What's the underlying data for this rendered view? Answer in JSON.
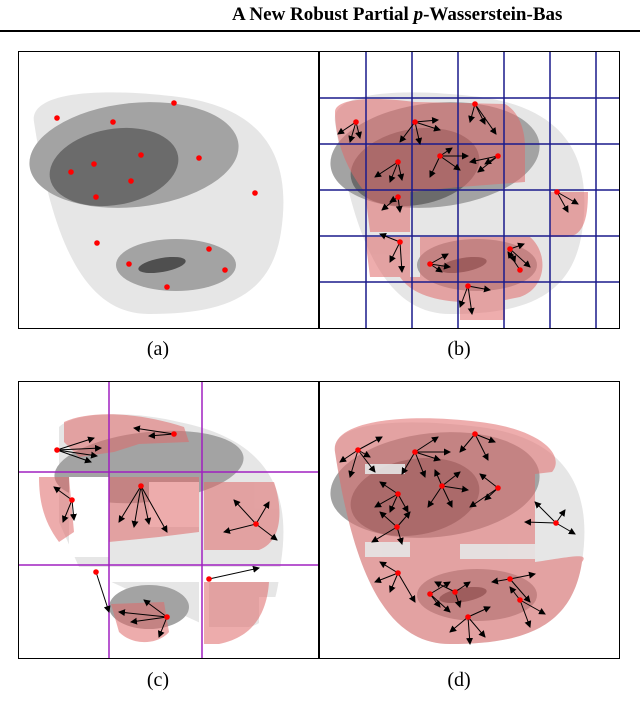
{
  "header": {
    "running_title_prefix": "A New Robust Partial ",
    "running_title_p": "p",
    "running_title_suffix": "-Wasserstein-Bas"
  },
  "panels": [
    {
      "id": "a",
      "caption": "(a)"
    },
    {
      "id": "b",
      "caption": "(b)"
    },
    {
      "id": "c",
      "caption": "(c)"
    },
    {
      "id": "d",
      "caption": "(d)"
    }
  ],
  "colors": {
    "outer_region": "#e6e6e6",
    "middle_region": "#a3a3a3",
    "inner_region": "#6b6b6b",
    "core_region": "#4f4f4f",
    "sample_point": "#ff0000",
    "transport_overlay": "#e06a6a",
    "grid_b": "#1a1a8c",
    "grid_c": "#a020c0",
    "arrow": "#000000"
  }
}
